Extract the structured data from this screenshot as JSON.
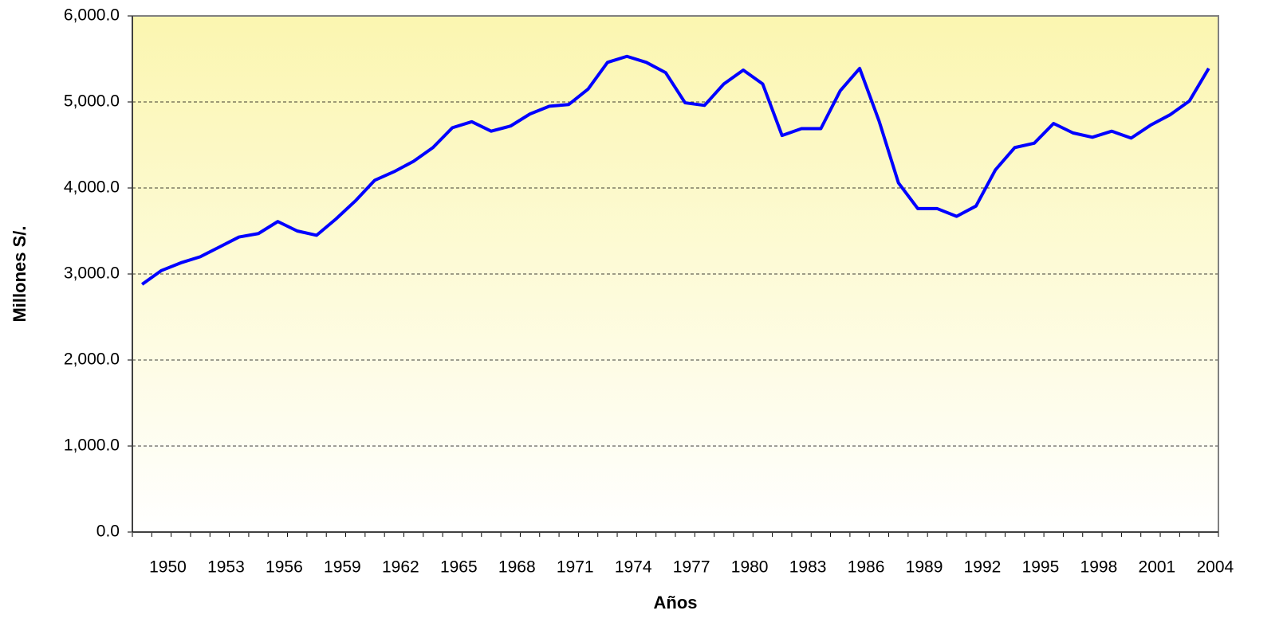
{
  "chart_data": {
    "type": "line",
    "x_label": "Años",
    "y_label": "Millones S/.",
    "categories": [
      null,
      "1950",
      null,
      null,
      "1953",
      null,
      null,
      "1956",
      null,
      null,
      "1959",
      null,
      null,
      "1962",
      null,
      null,
      "1965",
      null,
      null,
      "1968",
      null,
      null,
      "1971",
      null,
      null,
      "1974",
      null,
      null,
      "1977",
      null,
      null,
      "1980",
      null,
      null,
      "1983",
      null,
      null,
      "1986",
      null,
      null,
      "1989",
      null,
      null,
      "1992",
      null,
      null,
      "1995",
      null,
      null,
      "1998",
      null,
      null,
      "2001",
      null,
      null,
      "2004"
    ],
    "series": [
      {
        "color": "#0000ff",
        "values": [
          2880,
          3040,
          3130,
          3200,
          3315,
          3430,
          3470,
          3610,
          3500,
          3450,
          3640,
          3850,
          4090,
          4190,
          4310,
          4470,
          4700,
          4770,
          4660,
          4720,
          4860,
          4950,
          4970,
          5150,
          5460,
          5530,
          5460,
          5340,
          4990,
          4960,
          5210,
          5370,
          5210,
          4610,
          4690,
          4690,
          5130,
          5390,
          4780,
          4060,
          3760,
          3760,
          3670,
          3790,
          4210,
          4470,
          4520,
          4750,
          4640,
          4590,
          4660,
          4580,
          4730,
          4850,
          5010,
          5390
        ]
      }
    ],
    "ylim": [
      0,
      6000
    ],
    "yticks": [
      {
        "value": 0,
        "label": "0.0"
      },
      {
        "value": 1000,
        "label": "1,000.0"
      },
      {
        "value": 2000,
        "label": "2,000.0"
      },
      {
        "value": 3000,
        "label": "3,000.0"
      },
      {
        "value": 4000,
        "label": "4,000.0"
      },
      {
        "value": 5000,
        "label": "5,000.0"
      },
      {
        "value": 6000,
        "label": "6,000.0"
      }
    ],
    "grid": true
  }
}
